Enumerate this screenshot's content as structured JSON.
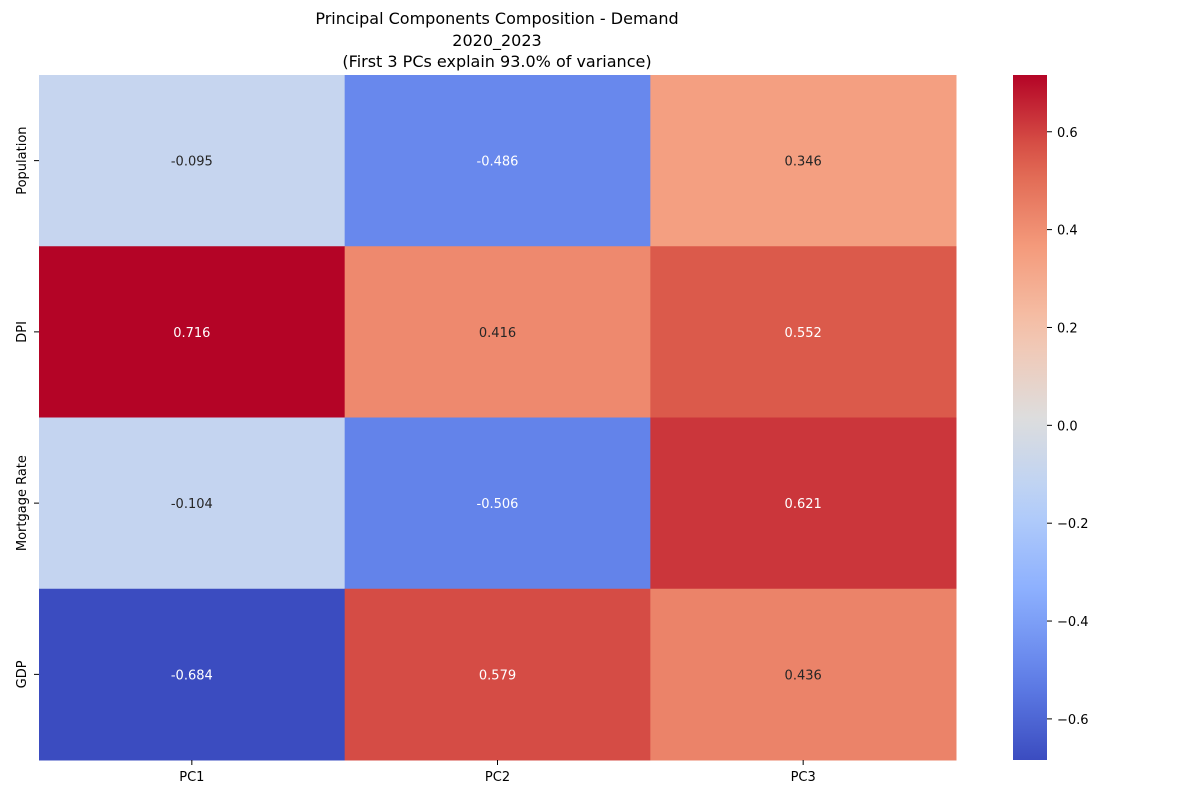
{
  "chart_data": {
    "type": "heatmap",
    "title": "Principal Components Composition - Demand",
    "title_lines": [
      "Principal Components Composition - Demand",
      "2020_2023",
      "(First 3 PCs explain 93.0% of variance)"
    ],
    "x_categories": [
      "PC1",
      "PC2",
      "PC3"
    ],
    "y_categories": [
      "Population",
      "DPI",
      "Mortgage Rate",
      "GDP"
    ],
    "values": [
      [
        -0.095,
        -0.486,
        0.346
      ],
      [
        0.716,
        0.416,
        0.552
      ],
      [
        -0.104,
        -0.506,
        0.621
      ],
      [
        -0.684,
        0.579,
        0.436
      ]
    ],
    "value_labels": [
      [
        "-0.095",
        "-0.486",
        "0.346"
      ],
      [
        "0.716",
        "0.416",
        "0.552"
      ],
      [
        "-0.104",
        "-0.506",
        "0.621"
      ],
      [
        "-0.684",
        "0.579",
        "0.436"
      ]
    ],
    "colormap": "coolwarm",
    "vmin": -0.684,
    "vmax": 0.716,
    "colorbar_ticks": [
      0.6,
      0.4,
      0.2,
      0.0,
      -0.2,
      -0.4,
      -0.6
    ],
    "colorbar_tick_labels": [
      "0.6",
      "0.4",
      "0.2",
      "0.0",
      "−0.2",
      "−0.4",
      "−0.6"
    ],
    "grid": false,
    "legend": "colorbar-right"
  }
}
